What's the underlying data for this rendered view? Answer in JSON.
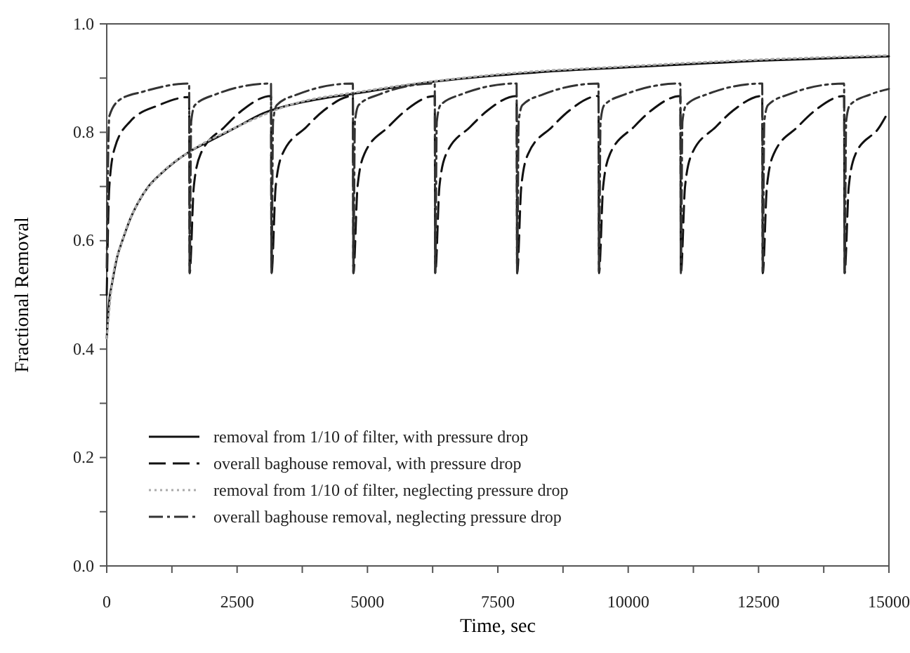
{
  "chart_data": {
    "type": "line",
    "xlabel": "Time, sec",
    "ylabel": "Fractional Removal",
    "xlim": [
      0,
      15000
    ],
    "ylim": [
      0,
      1
    ],
    "xticks": [
      0,
      {
        "value": 1250,
        "label": null
      },
      2500,
      {
        "value": 3750,
        "label": null
      },
      5000,
      {
        "value": 6250,
        "label": null
      },
      7500,
      {
        "value": 8750,
        "label": null
      },
      10000,
      {
        "value": 11250,
        "label": null
      },
      12500,
      {
        "value": 13750,
        "label": null
      },
      15000
    ],
    "yticks": [
      {
        "value": 0,
        "label": "0.0"
      },
      {
        "value": 0.1,
        "label": null
      },
      {
        "value": 0.2,
        "label": "0.2"
      },
      {
        "value": 0.3,
        "label": null
      },
      {
        "value": 0.4,
        "label": "0.4"
      },
      {
        "value": 0.5,
        "label": null
      },
      {
        "value": 0.6,
        "label": "0.6"
      },
      {
        "value": 0.7,
        "label": null
      },
      {
        "value": 0.8,
        "label": "0.8"
      },
      {
        "value": 0.9,
        "label": null
      },
      {
        "value": 1,
        "label": "1.0"
      }
    ],
    "grid": false,
    "legend": "bottom left",
    "marker": "none",
    "series": [
      {
        "name": "removal from 1/10 of filter, with pressure drop",
        "color": "#111111",
        "line_style": "solid",
        "x": [
          0,
          50,
          100,
          200,
          300,
          450,
          600,
          800,
          1000,
          1300,
          1600,
          2000,
          2500,
          3000,
          3500,
          4000,
          5000,
          6000,
          7500,
          9000,
          10000,
          12500,
          15000
        ],
        "values": [
          0.42,
          0.49,
          0.52,
          0.57,
          0.6,
          0.64,
          0.67,
          0.7,
          0.72,
          0.745,
          0.765,
          0.785,
          0.81,
          0.835,
          0.85,
          0.86,
          0.875,
          0.89,
          0.905,
          0.915,
          0.92,
          0.932,
          0.94
        ]
      },
      {
        "name": "overall baghouse removal, with pressure drop",
        "color": "#111111",
        "line_style": "dashed",
        "x": [
          0,
          50,
          150,
          450,
          1000,
          1580,
          1590,
          1670,
          1800,
          2260,
          2590,
          3150,
          3160,
          3240,
          3370,
          3830,
          4160,
          4720,
          4730,
          4810,
          4940,
          5400,
          5730,
          6290,
          6300,
          6380,
          6510,
          6970,
          7300,
          7860,
          7870,
          7950,
          8080,
          8540,
          8870,
          9430,
          9440,
          9520,
          9650,
          10110,
          10440,
          11000,
          11010,
          11090,
          11220,
          11680,
          12010,
          12570,
          12580,
          12660,
          12790,
          13250,
          13580,
          14140,
          14150,
          14230,
          14360,
          14820,
          15000
        ],
        "values": [
          0.5,
          0.7,
          0.77,
          0.82,
          0.85,
          0.865,
          0.54,
          0.7,
          0.76,
          0.81,
          0.84,
          0.867,
          0.54,
          0.7,
          0.76,
          0.81,
          0.84,
          0.867,
          0.54,
          0.7,
          0.76,
          0.81,
          0.84,
          0.867,
          0.54,
          0.7,
          0.76,
          0.81,
          0.84,
          0.867,
          0.54,
          0.7,
          0.76,
          0.81,
          0.84,
          0.867,
          0.54,
          0.7,
          0.76,
          0.81,
          0.84,
          0.867,
          0.54,
          0.7,
          0.76,
          0.81,
          0.84,
          0.867,
          0.54,
          0.7,
          0.76,
          0.81,
          0.84,
          0.867,
          0.54,
          0.7,
          0.76,
          0.81,
          0.84
        ]
      },
      {
        "name": "removal from 1/10 of filter, neglecting pressure drop",
        "color": "#aaaaaa",
        "line_style": "dotted",
        "x": [
          0,
          100,
          300,
          600,
          1000,
          1600,
          2500,
          3500,
          5000,
          7500,
          10000,
          12500,
          15000
        ],
        "values": [
          0.42,
          0.52,
          0.6,
          0.67,
          0.72,
          0.765,
          0.81,
          0.85,
          0.877,
          0.907,
          0.922,
          0.934,
          0.942
        ]
      },
      {
        "name": "overall baghouse removal, neglecting pressure drop",
        "color": "#333333",
        "line_style": "dashdot",
        "x": [
          0,
          50,
          250,
          700,
          1580,
          1590,
          1620,
          1690,
          2090,
          3150,
          3160,
          3190,
          3260,
          3660,
          4720,
          4730,
          4760,
          4830,
          5230,
          6290,
          6300,
          6330,
          6400,
          6800,
          7860,
          7870,
          7900,
          7970,
          8370,
          9430,
          9440,
          9470,
          9540,
          9940,
          11000,
          11010,
          11040,
          11110,
          11510,
          12570,
          12580,
          12610,
          12680,
          13080,
          14140,
          14150,
          14180,
          14250,
          14650,
          15000
        ],
        "values": [
          0.55,
          0.83,
          0.86,
          0.875,
          0.89,
          0.54,
          0.82,
          0.85,
          0.87,
          0.89,
          0.54,
          0.82,
          0.85,
          0.87,
          0.89,
          0.54,
          0.82,
          0.85,
          0.87,
          0.89,
          0.54,
          0.82,
          0.85,
          0.87,
          0.89,
          0.54,
          0.82,
          0.85,
          0.87,
          0.89,
          0.54,
          0.82,
          0.85,
          0.87,
          0.89,
          0.54,
          0.82,
          0.85,
          0.87,
          0.89,
          0.54,
          0.82,
          0.85,
          0.87,
          0.89,
          0.54,
          0.82,
          0.85,
          0.87,
          0.88
        ]
      }
    ]
  }
}
